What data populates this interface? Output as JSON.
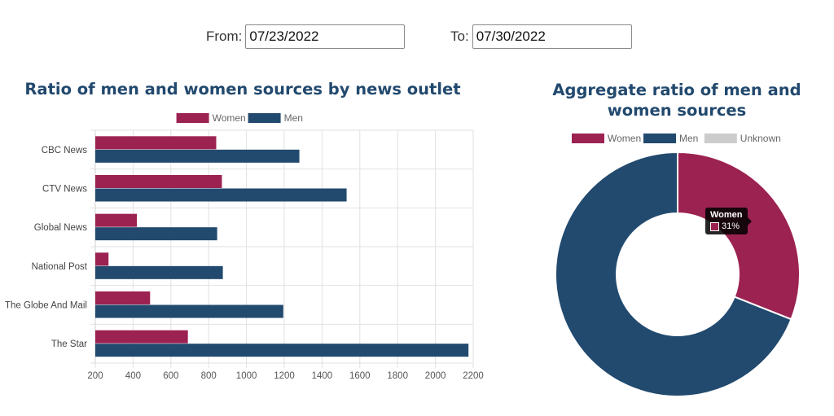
{
  "filters": {
    "from_label": "From:",
    "from_value": "07/23/2022",
    "to_label": "To:",
    "to_value": "07/30/2022"
  },
  "colors": {
    "women": "#9c2252",
    "men": "#224a6e",
    "unknown": "#cccccc"
  },
  "chart_data": [
    {
      "type": "bar",
      "orientation": "horizontal",
      "title": "Ratio of men and women sources by news outlet",
      "categories": [
        "CBC News",
        "CTV News",
        "Global News",
        "National Post",
        "The Globe And Mail",
        "The Star"
      ],
      "series": [
        {
          "name": "Women",
          "values": [
            840,
            870,
            420,
            270,
            490,
            690
          ]
        },
        {
          "name": "Men",
          "values": [
            1280,
            1530,
            845,
            875,
            1195,
            2175
          ]
        }
      ],
      "xlim": [
        200,
        2200
      ],
      "xticks": [
        200,
        400,
        600,
        800,
        1000,
        1200,
        1400,
        1600,
        1800,
        2000,
        2200
      ],
      "grid": true,
      "legend": "top"
    },
    {
      "type": "pie",
      "variant": "doughnut",
      "title": "Aggregate ratio of men and women sources",
      "labels": [
        "Women",
        "Men",
        "Unknown"
      ],
      "values": [
        31,
        69,
        0
      ],
      "legend": "top",
      "tooltip": {
        "title": "Women",
        "value": "31%"
      }
    }
  ]
}
